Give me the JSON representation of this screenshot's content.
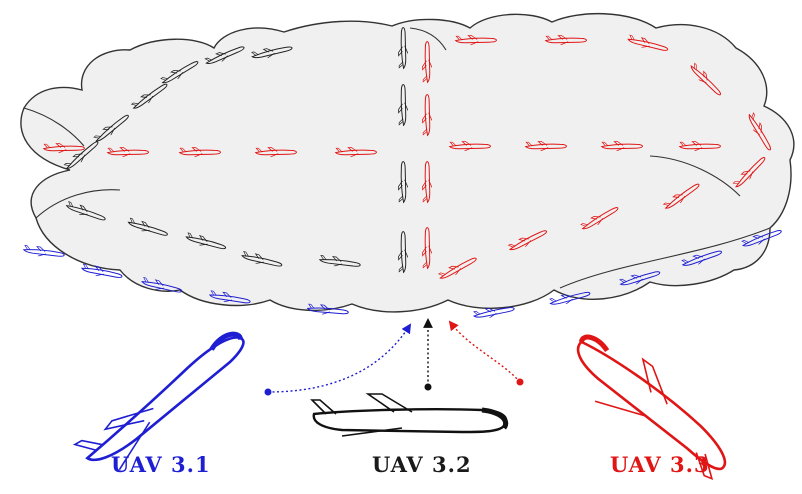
{
  "labels": {
    "uav1": "UAV  3.1",
    "uav2": "UAV  3.2",
    "uav3": "UAV  3.3"
  },
  "colors": {
    "uav1": "#1e1ed2",
    "uav2": "#1a1a1a",
    "uav3": "#e01515",
    "cloud_fill": "#f0f0f0",
    "cloud_stroke": "#333333"
  },
  "icons": {
    "uav_large": "airplane-icon",
    "uav_small": "airplane-icon",
    "cloud": "cloud-shape"
  }
}
